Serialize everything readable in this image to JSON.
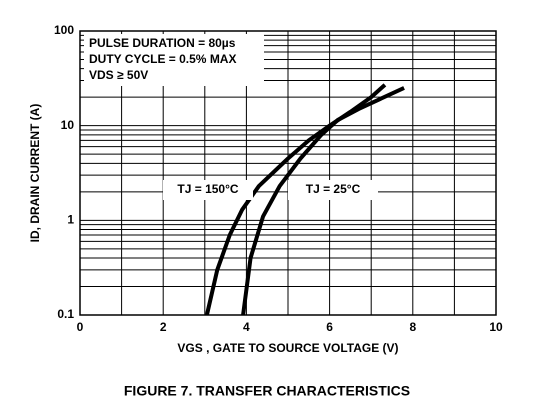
{
  "chart_data": {
    "type": "line",
    "title": "FIGURE 7. TRANSFER CHARACTERISTICS",
    "xlabel": "VGS , GATE TO SOURCE VOLTAGE (V)",
    "ylabel": "ID, DRAIN CURRENT (A)",
    "annotations": [
      "PULSE DURATION = 80µs",
      "DUTY CYCLE = 0.5% MAX",
      "VDS ≥ 50V"
    ],
    "xlim": [
      0,
      10
    ],
    "xticks": [
      0,
      2,
      4,
      6,
      8,
      10
    ],
    "ylim": [
      0.1,
      100
    ],
    "yticks": [
      0.1,
      1,
      10,
      100
    ],
    "log_y": true,
    "grid": true,
    "minor_grid": true,
    "series": [
      {
        "name": "TJ = 150°C",
        "color": "#000000",
        "x": [
          3.05,
          3.3,
          3.6,
          3.9,
          4.3,
          5.0,
          5.5,
          6.0,
          6.5,
          7.0,
          7.33
        ],
        "values": [
          0.1,
          0.3,
          0.7,
          1.3,
          2.3,
          4.5,
          7,
          10,
          14,
          20,
          27
        ]
      },
      {
        "name": "TJ = 25°C",
        "color": "#000000",
        "x": [
          3.92,
          4.1,
          4.4,
          4.8,
          5.3,
          5.8,
          6.2,
          6.7,
          7.2,
          7.79
        ],
        "values": [
          0.1,
          0.4,
          1.1,
          2.3,
          4.5,
          8,
          11.5,
          15,
          19,
          25
        ]
      }
    ]
  }
}
